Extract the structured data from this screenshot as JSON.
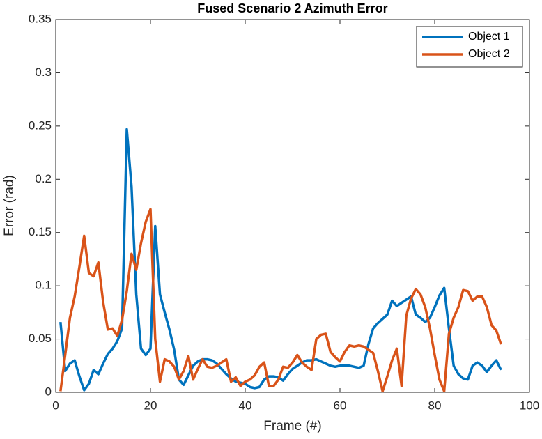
{
  "chart_data": {
    "type": "line",
    "title": "Fused Scenario 2 Azimuth Error",
    "x_label": "Frame (#)",
    "y_label": "Error (rad)",
    "x": [
      1,
      2,
      3,
      4,
      5,
      6,
      7,
      8,
      9,
      10,
      11,
      12,
      13,
      14,
      15,
      16,
      17,
      18,
      19,
      20,
      21,
      22,
      23,
      24,
      25,
      26,
      27,
      28,
      29,
      30,
      31,
      32,
      33,
      34,
      35,
      36,
      37,
      38,
      39,
      40,
      41,
      42,
      43,
      44,
      45,
      46,
      47,
      48,
      49,
      50,
      51,
      52,
      53,
      54,
      55,
      56,
      57,
      58,
      59,
      60,
      61,
      62,
      63,
      64,
      65,
      66,
      67,
      68,
      69,
      70,
      71,
      72,
      73,
      74,
      75,
      76,
      77,
      78,
      79,
      80,
      81,
      82,
      83,
      84,
      85,
      86,
      87,
      88,
      89,
      90,
      91,
      92,
      93,
      94
    ],
    "series": [
      {
        "name": "Object 1",
        "color": "#0072bd",
        "values": [
          0.066,
          0.02,
          0.027,
          0.03,
          0.015,
          0.002,
          0.008,
          0.021,
          0.017,
          0.027,
          0.036,
          0.041,
          0.048,
          0.06,
          0.247,
          0.193,
          0.092,
          0.041,
          0.035,
          0.041,
          0.156,
          0.092,
          0.075,
          0.059,
          0.04,
          0.012,
          0.007,
          0.016,
          0.025,
          0.029,
          0.031,
          0.031,
          0.03,
          0.027,
          0.022,
          0.017,
          0.013,
          0.01,
          0.009,
          0.008,
          0.005,
          0.004,
          0.005,
          0.012,
          0.015,
          0.015,
          0.014,
          0.011,
          0.017,
          0.022,
          0.025,
          0.028,
          0.03,
          0.03,
          0.031,
          0.029,
          0.027,
          0.025,
          0.024,
          0.025,
          0.025,
          0.025,
          0.024,
          0.023,
          0.025,
          0.045,
          0.06,
          0.065,
          0.069,
          0.073,
          0.086,
          0.081,
          0.084,
          0.087,
          0.09,
          0.073,
          0.07,
          0.066,
          0.07,
          0.08,
          0.091,
          0.098,
          0.06,
          0.025,
          0.017,
          0.013,
          0.012,
          0.025,
          0.028,
          0.025,
          0.019,
          0.025,
          0.03,
          0.021
        ]
      },
      {
        "name": "Object 2",
        "color": "#d95319",
        "values": [
          0.001,
          0.035,
          0.07,
          0.09,
          0.118,
          0.147,
          0.112,
          0.109,
          0.122,
          0.085,
          0.059,
          0.06,
          0.053,
          0.068,
          0.095,
          0.13,
          0.115,
          0.14,
          0.16,
          0.172,
          0.05,
          0.01,
          0.031,
          0.029,
          0.024,
          0.012,
          0.02,
          0.034,
          0.012,
          0.022,
          0.031,
          0.024,
          0.023,
          0.025,
          0.028,
          0.031,
          0.01,
          0.014,
          0.006,
          0.01,
          0.012,
          0.016,
          0.024,
          0.028,
          0.006,
          0.006,
          0.012,
          0.024,
          0.023,
          0.028,
          0.035,
          0.028,
          0.024,
          0.021,
          0.05,
          0.054,
          0.055,
          0.038,
          0.033,
          0.029,
          0.038,
          0.044,
          0.043,
          0.044,
          0.043,
          0.04,
          0.037,
          0.02,
          0.001,
          0.015,
          0.03,
          0.041,
          0.006,
          0.072,
          0.088,
          0.097,
          0.092,
          0.08,
          0.06,
          0.035,
          0.012,
          0.001,
          0.055,
          0.07,
          0.08,
          0.096,
          0.095,
          0.086,
          0.09,
          0.09,
          0.08,
          0.063,
          0.058,
          0.045
        ]
      }
    ],
    "xlim": [
      0,
      100
    ],
    "xticks": [
      0,
      20,
      40,
      60,
      80,
      100
    ],
    "ylim": [
      0,
      0.35
    ],
    "yticks": [
      0,
      0.05,
      0.1,
      0.15,
      0.2,
      0.25,
      0.3,
      0.35
    ],
    "legend": "upper right",
    "grid": false
  }
}
